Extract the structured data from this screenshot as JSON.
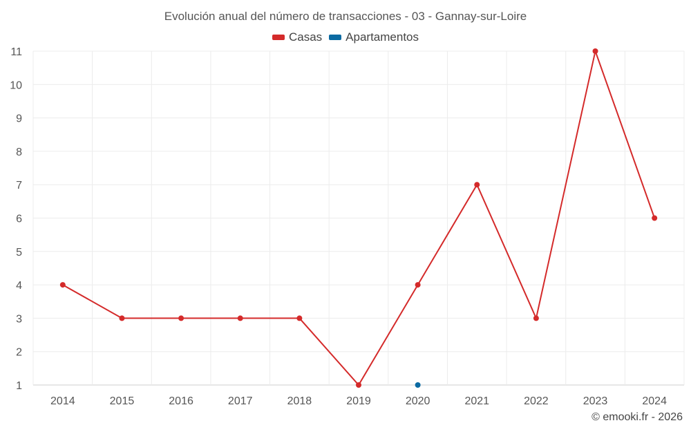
{
  "chart_data": {
    "type": "line",
    "title": "Evolución anual del número de transacciones - 03 - Gannay-sur-Loire",
    "categories": [
      "2014",
      "2015",
      "2016",
      "2017",
      "2018",
      "2019",
      "2020",
      "2021",
      "2022",
      "2023",
      "2024"
    ],
    "series": [
      {
        "name": "Casas",
        "color": "#d42a2a",
        "values": [
          4,
          3,
          3,
          3,
          3,
          1,
          4,
          7,
          3,
          11,
          6
        ]
      },
      {
        "name": "Apartamentos",
        "color": "#0b6aa2",
        "values": [
          null,
          null,
          null,
          null,
          null,
          null,
          1,
          null,
          null,
          null,
          null
        ]
      }
    ],
    "xlabel": "",
    "ylabel": "",
    "ylim": [
      1,
      11
    ],
    "yticks": [
      "1",
      "2",
      "3",
      "4",
      "5",
      "6",
      "7",
      "8",
      "9",
      "10",
      "11"
    ],
    "grid": true,
    "legend_position": "top-center"
  },
  "credit": "© emooki.fr - 2026"
}
